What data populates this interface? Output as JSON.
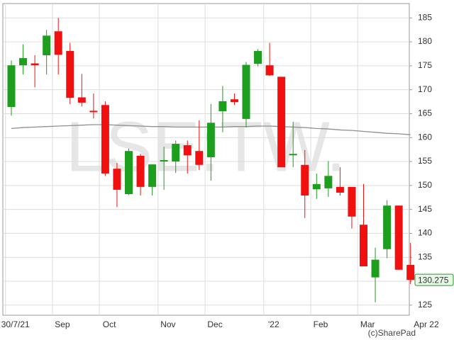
{
  "chart_data": {
    "type": "candlestick",
    "watermark": "LSE:TW.",
    "credit": "(c)SharePad",
    "categories": [
      "30/7/21",
      null,
      null,
      null,
      "Sep",
      null,
      null,
      null,
      "Oct",
      null,
      null,
      null,
      null,
      "Nov",
      null,
      null,
      null,
      "Dec",
      null,
      null,
      null,
      null,
      "'22",
      null,
      null,
      null,
      "Feb",
      null,
      null,
      null,
      "Mar",
      null,
      null,
      null,
      null,
      "Apr 22"
    ],
    "open": [
      166.4,
      175.1,
      175.5,
      177.2,
      182.2,
      178.1,
      168.4,
      165.6,
      166.8,
      153.5,
      148.2,
      156.2,
      149.7,
      155.0,
      155.0,
      158.4,
      157.2,
      155.9,
      165.5,
      168.0,
      163.9,
      175.4,
      175.1,
      172.7,
      156.3,
      154.3,
      149.2,
      149.4,
      149.7,
      149.7,
      141.8,
      130.8,
      136.7,
      145.8,
      133.4,
      null
    ],
    "high": [
      176.1,
      179.5,
      177.2,
      182.5,
      185.0,
      179.8,
      173.3,
      169.2,
      167.6,
      154.7,
      157.7,
      156.6,
      154.4,
      158.1,
      159.4,
      159.4,
      163.6,
      167.0,
      170.8,
      169.2,
      175.8,
      178.5,
      179.8,
      172.7,
      163.3,
      157.4,
      152.5,
      155.1,
      153.8,
      149.7,
      150.3,
      137.0,
      146.9,
      145.8,
      138.0,
      null
    ],
    "low": [
      164.6,
      173.2,
      170.5,
      173.2,
      173.2,
      167.0,
      166.5,
      164.0,
      152.0,
      145.5,
      148.0,
      147.9,
      147.9,
      149.1,
      152.6,
      152.5,
      153.2,
      151.0,
      161.1,
      166.8,
      162.1,
      174.9,
      172.9,
      153.8,
      153.8,
      143.2,
      147.2,
      147.6,
      147.9,
      141.0,
      133.1,
      125.6,
      134.8,
      132.4,
      129.4,
      null
    ],
    "close": [
      175.1,
      176.6,
      175.1,
      181.3,
      177.3,
      168.3,
      167.3,
      165.3,
      152.5,
      149.1,
      157.2,
      149.7,
      154.4,
      155.3,
      158.7,
      156.3,
      154.3,
      163.1,
      167.6,
      167.4,
      175.2,
      178.1,
      173.0,
      153.8,
      156.6,
      147.9,
      150.3,
      152.0,
      148.5,
      143.5,
      133.1,
      134.5,
      145.8,
      132.4,
      130.275,
      null
    ],
    "up_color": "#1e9e1e",
    "down_color": "#f01010",
    "moving_average": {
      "color": "#909090",
      "values": [
        161.9,
        162.1,
        162.2,
        162.3,
        162.4,
        162.5,
        162.6,
        162.7,
        162.7,
        162.6,
        162.5,
        162.4,
        162.3,
        162.3,
        162.2,
        162.2,
        162.2,
        162.2,
        162.2,
        162.3,
        162.3,
        162.4,
        162.4,
        162.3,
        162.2,
        162.1,
        161.9,
        161.8,
        161.6,
        161.5,
        161.3,
        161.1,
        160.9,
        160.8,
        160.6,
        null
      ]
    },
    "last_value": 130.275,
    "last_value_color": "#2a9a2a",
    "ylim": [
      122.9,
      188.0
    ],
    "yticks": [
      125,
      130,
      135,
      140,
      145,
      150,
      155,
      160,
      165,
      170,
      175,
      180,
      185
    ],
    "grid": true
  }
}
